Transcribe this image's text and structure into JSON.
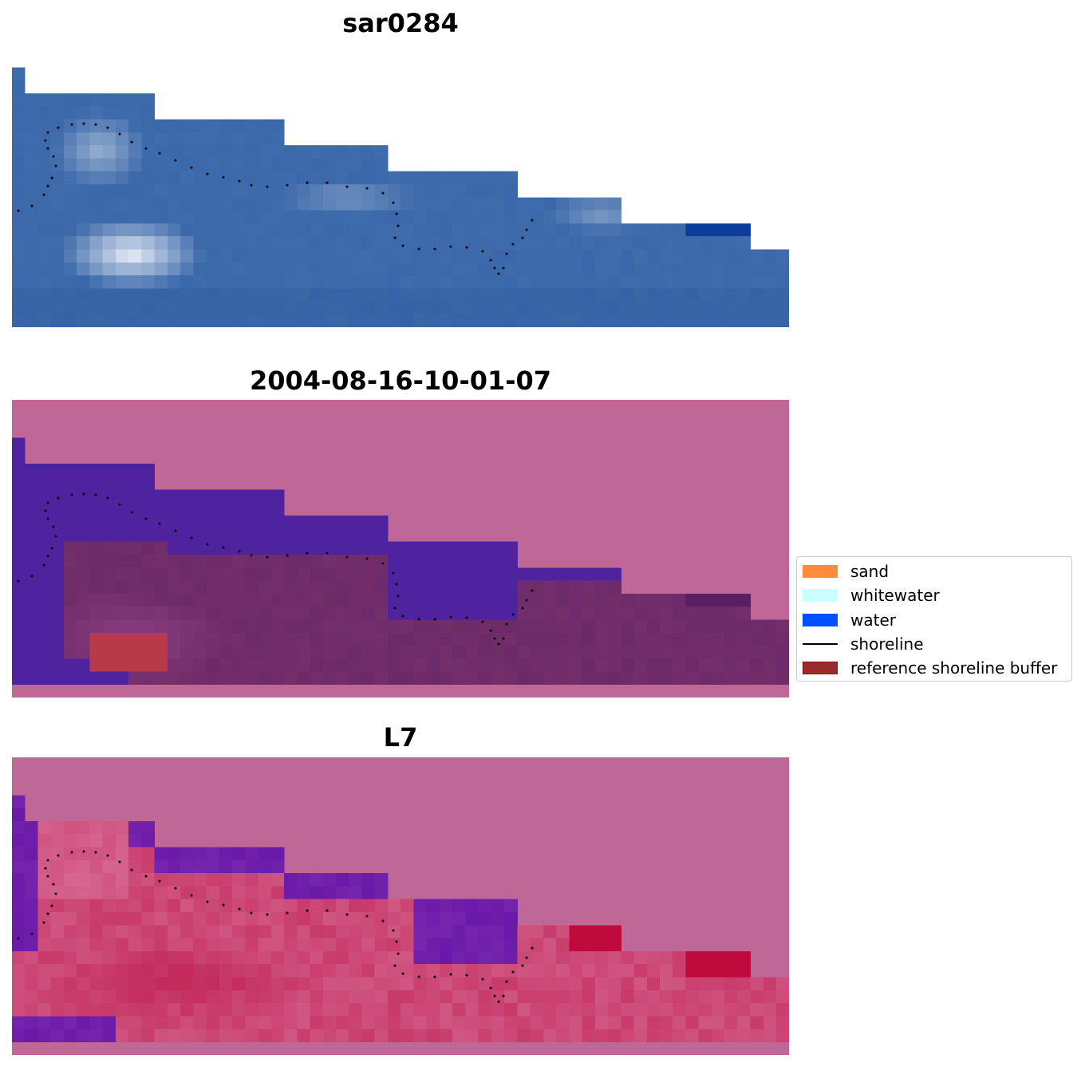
{
  "panels": [
    {
      "title": "sar0284",
      "kind": "rgb"
    },
    {
      "title": "2004-08-16-10-01-07",
      "kind": "classification"
    },
    {
      "title": "L7",
      "kind": "index"
    }
  ],
  "legend": {
    "items": [
      {
        "label": "sand",
        "color": "#ff8c3c",
        "type": "patch"
      },
      {
        "label": "whitewater",
        "color": "#c8ffff",
        "type": "patch"
      },
      {
        "label": "water",
        "color": "#0050ff",
        "type": "patch"
      },
      {
        "label": "shoreline",
        "color": "#000000",
        "type": "line"
      },
      {
        "label": "reference shoreline buffer",
        "color": "#9b2a2a",
        "type": "patch"
      }
    ]
  },
  "colors": {
    "nodata": "#bf6897",
    "water_class": "#4f22a0",
    "land_class": "#6c2a68",
    "buffer_class": "#b83a48",
    "rgb_water": "#3a6aaa",
    "index_land": "#c83a6a",
    "index_water": "#6a18a8"
  }
}
